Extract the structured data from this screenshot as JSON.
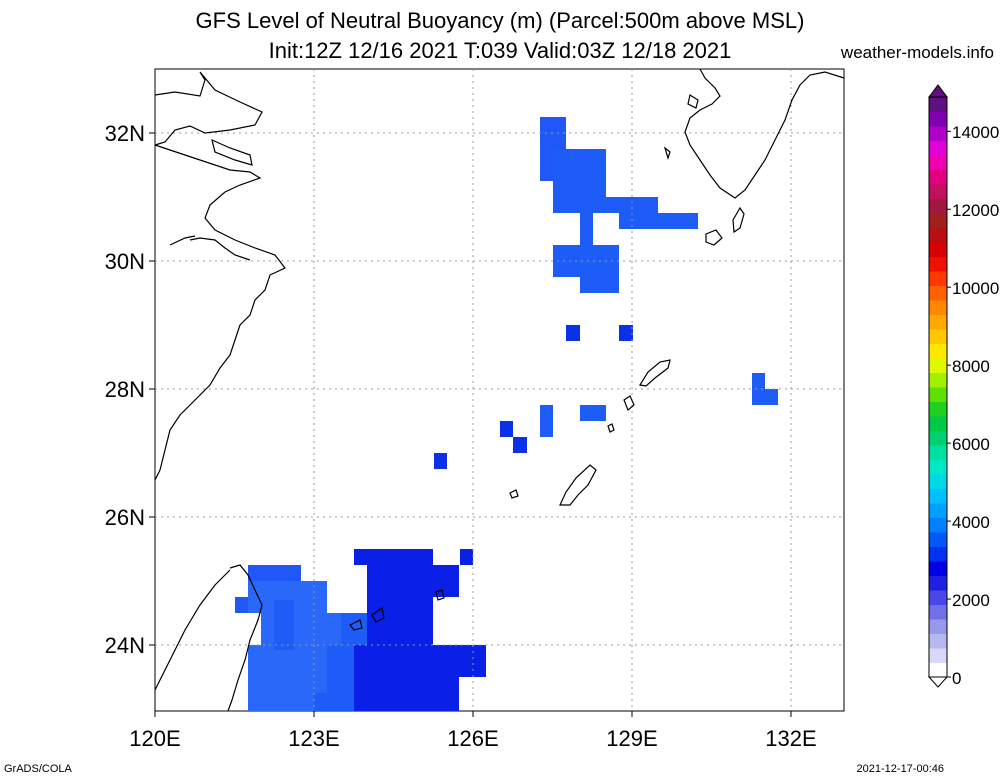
{
  "title_line1": "GFS Level of Neutral Buoyancy (m) (Parcel:500m above MSL)",
  "title_line2": "Init:12Z 12/16 2021 T:039 Valid:03Z 12/18 2021",
  "site": "weather-models.info",
  "footer_left": "GrADS/COLA",
  "footer_right": "2021-12-17-00:46",
  "lon_labels": [
    "120E",
    "123E",
    "126E",
    "129E",
    "132E"
  ],
  "lat_labels": [
    "32N",
    "30N",
    "28N",
    "26N",
    "24N"
  ],
  "colorbar": {
    "labels": [
      "0",
      "2000",
      "4000",
      "6000",
      "8000",
      "10000",
      "12000",
      "14000"
    ],
    "colors": [
      "#ffffff",
      "#d8d8f8",
      "#b8b8f0",
      "#9898ec",
      "#7070e8",
      "#4848e8",
      "#2020e0",
      "#0000e6",
      "#0030f0",
      "#0058f8",
      "#0080ff",
      "#00a0ff",
      "#00c0ff",
      "#00d8e8",
      "#00e8c8",
      "#00e0a0",
      "#00d070",
      "#00c848",
      "#20d020",
      "#60e000",
      "#a0f000",
      "#e0f800",
      "#ffe800",
      "#ffc800",
      "#ffa800",
      "#ff8800",
      "#ff6000",
      "#ff3800",
      "#f01000",
      "#d80000",
      "#b81010",
      "#a02020",
      "#a01840",
      "#c01060",
      "#e00080",
      "#f000b0",
      "#e000d8",
      "#b000c8",
      "#8000b0",
      "#601080"
    ]
  }
}
